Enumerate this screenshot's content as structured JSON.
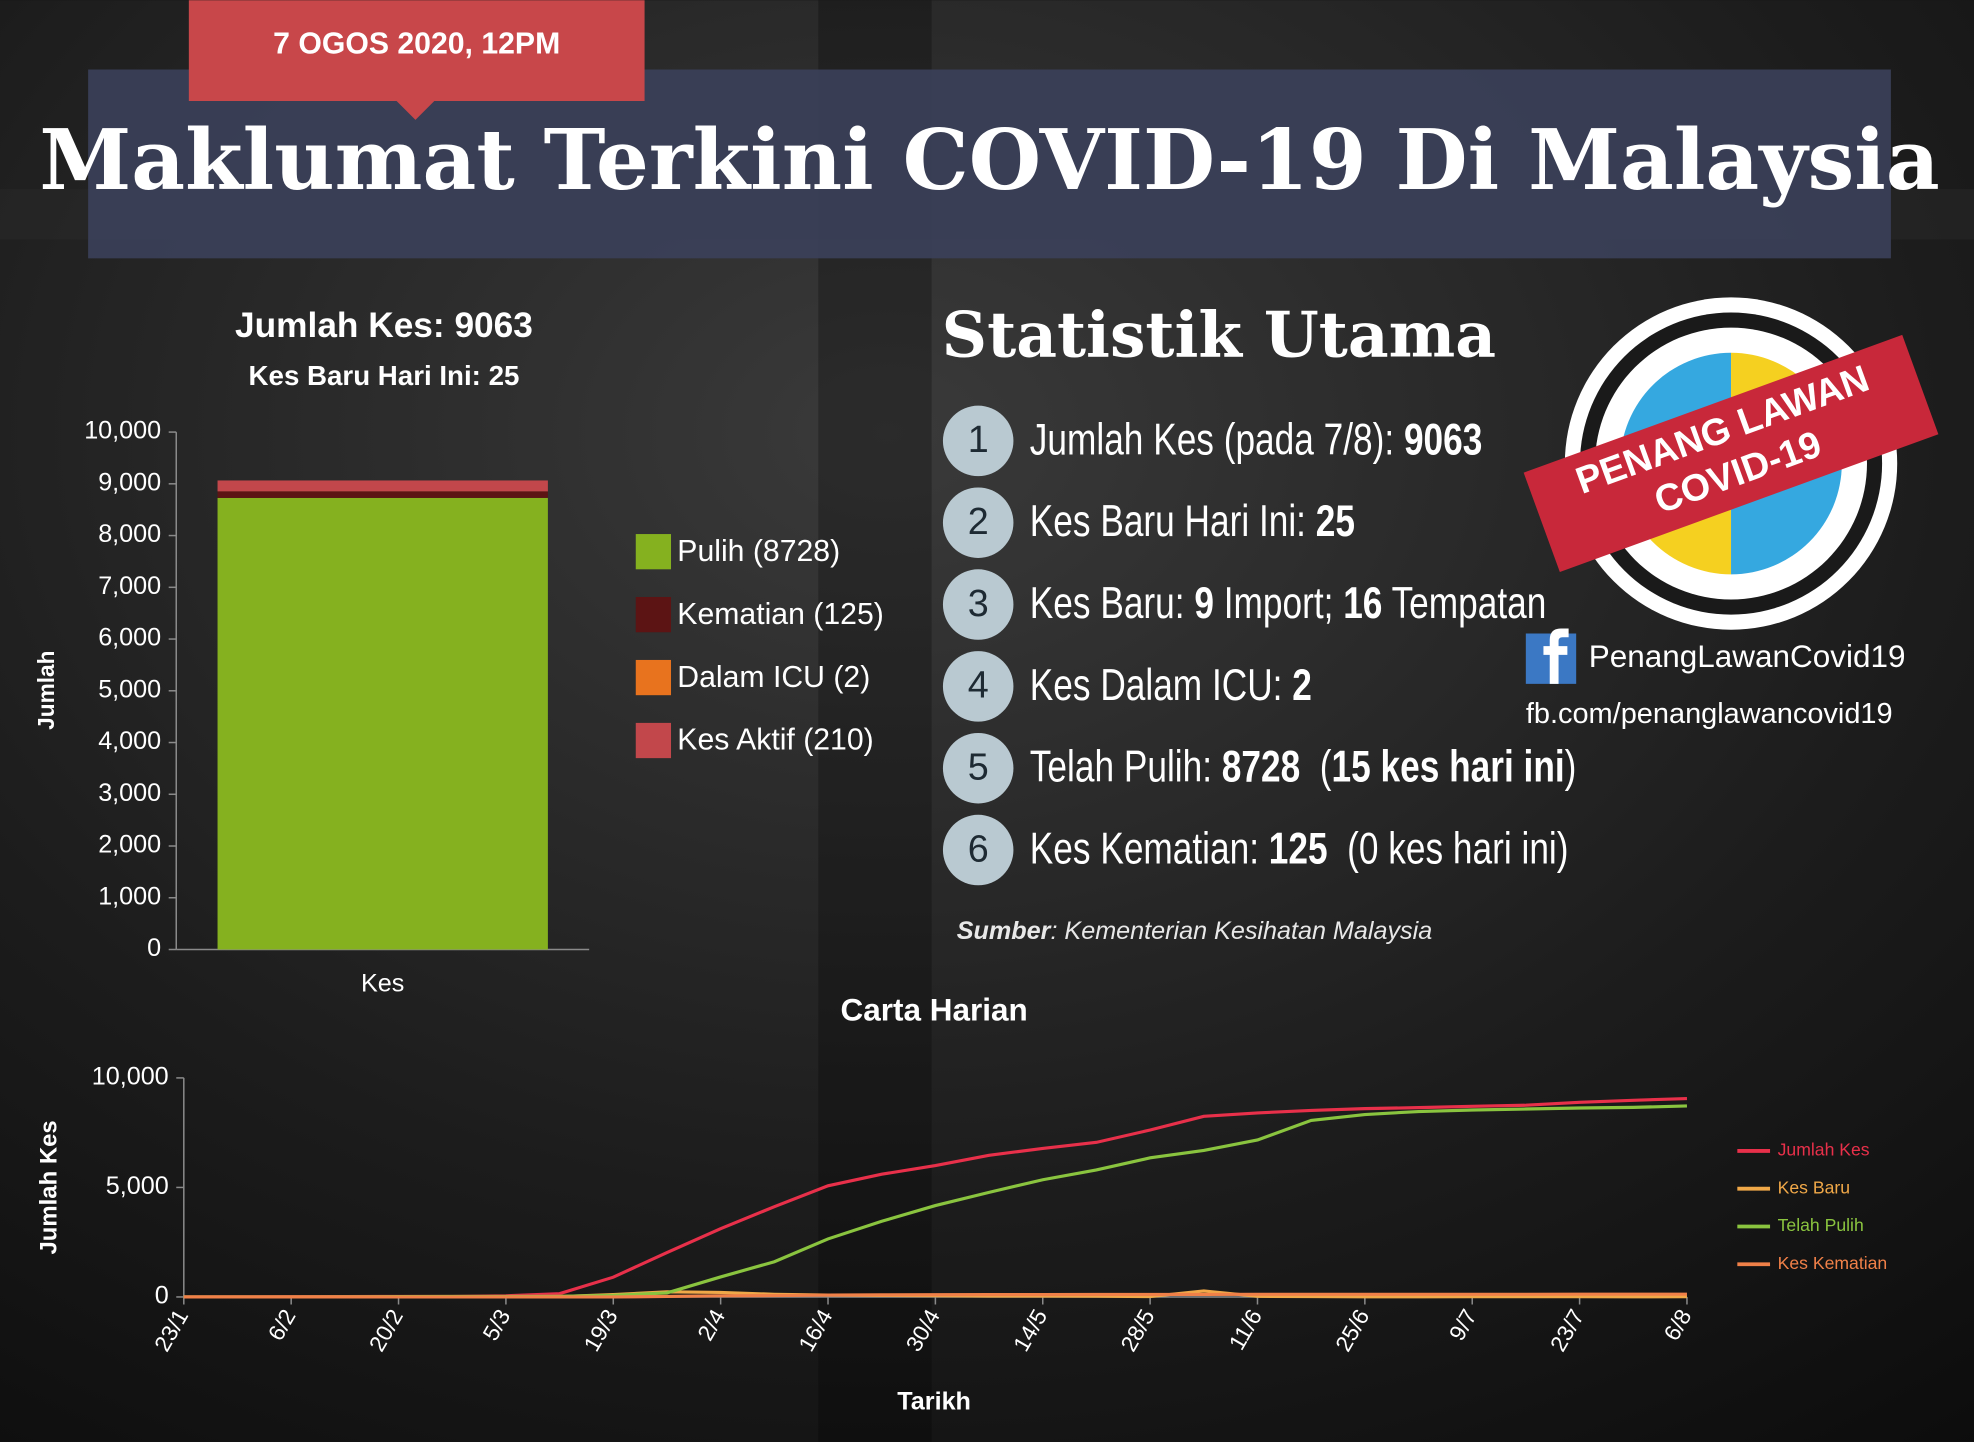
{
  "header": {
    "date": "7 OGOS 2020, 12PM",
    "title": "Maklumat Terkini COVID-19 Di Malaysia"
  },
  "stats": {
    "title": "Statistik Utama",
    "items": [
      {
        "number": "1",
        "parts": [
          {
            "text": "Jumlah Kes (pada 7/8): "
          },
          {
            "text": "9063",
            "bold": true
          }
        ]
      },
      {
        "number": "2",
        "parts": [
          {
            "text": "Kes Baru Hari Ini: "
          },
          {
            "text": "25",
            "bold": true
          }
        ]
      },
      {
        "number": "3",
        "parts": [
          {
            "text": "Kes Baru: "
          },
          {
            "text": "9",
            "bold": true
          },
          {
            "text": " Import; "
          },
          {
            "text": "16",
            "bold": true
          },
          {
            "text": " Tempatan"
          }
        ]
      },
      {
        "number": "4",
        "parts": [
          {
            "text": "Kes Dalam ICU: "
          },
          {
            "text": "2",
            "bold": true
          }
        ]
      },
      {
        "number": "5",
        "parts": [
          {
            "text": "Telah Pulih: "
          },
          {
            "text": "8728",
            "bold": true
          },
          {
            "text": "  ("
          },
          {
            "text": "15 kes hari ini",
            "bold": true
          },
          {
            "text": ")"
          }
        ]
      },
      {
        "number": "6",
        "parts": [
          {
            "text": "Kes Kematian: "
          },
          {
            "text": "125",
            "bold": true
          },
          {
            "text": "  (0 kes hari ini)"
          }
        ]
      }
    ],
    "source_label": "Sumber",
    "source": ": Kementerian Kesihatan Malaysia"
  },
  "badge": {
    "line1": "PENANG LAWAN",
    "line2": "COVID-19"
  },
  "facebook": {
    "name": "PenangLawanCovid19",
    "url": "fb.com/penanglawancovid19"
  },
  "chart_data": [
    {
      "type": "bar",
      "title": "Jumlah Kes: 9063",
      "subtitle": "Kes Baru Hari Ini: 25",
      "y_label": "Jumlah",
      "categories": [
        "Kes"
      ],
      "stacked": true,
      "series": [
        {
          "name": "Pulih (8728)",
          "color": "#85b11f",
          "values": [
            8728
          ]
        },
        {
          "name": "Kematian (125)",
          "color": "#5c1414",
          "values": [
            125
          ]
        },
        {
          "name": "Dalam ICU (2)",
          "color": "#e8731e",
          "values": [
            2
          ]
        },
        {
          "name": "Kes Aktif (210)",
          "color": "#c2474b",
          "values": [
            210
          ]
        }
      ],
      "ylim": [
        0,
        10000
      ],
      "yticks": [
        0,
        {
          "value": 1000,
          "label": "1,000"
        },
        {
          "value": 2000,
          "label": "2,000"
        },
        {
          "value": 3000,
          "label": "3,000"
        },
        {
          "value": 4000,
          "label": "4,000"
        },
        {
          "value": 5000,
          "label": "5,000"
        },
        {
          "value": 6000,
          "label": "6,000"
        },
        {
          "value": 7000,
          "label": "7,000"
        },
        {
          "value": 8000,
          "label": "8,000"
        },
        {
          "value": 9000,
          "label": "9,000"
        },
        {
          "value": 10000,
          "label": "10,000"
        }
      ],
      "legend": "right"
    },
    {
      "type": "line",
      "title": "Carta Harian",
      "x_label": "Tarikh",
      "y_label": "Jumlah Kes",
      "x": [
        "23/1",
        "30/1",
        "6/2",
        "13/2",
        "20/2",
        "27/2",
        "5/3",
        "12/3",
        "19/3",
        "26/3",
        "2/4",
        "9/4",
        "16/4",
        "23/4",
        "30/4",
        "7/5",
        "14/5",
        "21/5",
        "28/5",
        "4/6",
        "11/6",
        "18/6",
        "25/6",
        "2/7",
        "9/7",
        "16/7",
        "23/7",
        "30/7",
        "6/8"
      ],
      "xticks": [
        "23/1",
        "6/2",
        "20/2",
        "5/3",
        "19/3",
        "2/4",
        "16/4",
        "30/4",
        "14/5",
        "28/5",
        "11/6",
        "25/6",
        "9/7",
        "23/7",
        "6/8"
      ],
      "series": [
        {
          "name": "Jumlah Kes",
          "color": "#e8304a",
          "values": [
            0,
            8,
            14,
            19,
            22,
            23,
            50,
            149,
            900,
            2031,
            3116,
            4119,
            5072,
            5603,
            6002,
            6467,
            6779,
            7059,
            7619,
            8247,
            8402,
            8515,
            8596,
            8643,
            8704,
            8755,
            8884,
            8976,
            9059
          ]
        },
        {
          "name": "Kes Baru",
          "color": "#f0a848",
          "values": [
            0,
            1,
            0,
            0,
            0,
            0,
            14,
            20,
            110,
            235,
            208,
            118,
            85,
            71,
            57,
            39,
            40,
            37,
            15,
            277,
            31,
            15,
            6,
            3,
            9,
            9,
            10,
            3,
            9
          ]
        },
        {
          "name": "Telah Pulih",
          "color": "#8ac43f",
          "values": [
            0,
            0,
            1,
            3,
            15,
            22,
            22,
            26,
            75,
            183,
            915,
            1608,
            2647,
            3452,
            4171,
            4776,
            5351,
            5796,
            6353,
            6692,
            7168,
            8059,
            8325,
            8467,
            8535,
            8581,
            8626,
            8656,
            8716
          ]
        },
        {
          "name": "Kes Kematian",
          "color": "#f08048",
          "values": [
            0,
            0,
            0,
            0,
            0,
            0,
            0,
            0,
            2,
            23,
            50,
            65,
            86,
            95,
            103,
            107,
            112,
            115,
            115,
            116,
            121,
            121,
            121,
            121,
            122,
            123,
            124,
            125,
            125
          ]
        }
      ],
      "ylim": [
        0,
        10000
      ],
      "yticks": [
        0,
        {
          "value": 5000,
          "label": "5,000"
        },
        {
          "value": 10000,
          "label": "10,000"
        }
      ],
      "legend": "right"
    }
  ]
}
